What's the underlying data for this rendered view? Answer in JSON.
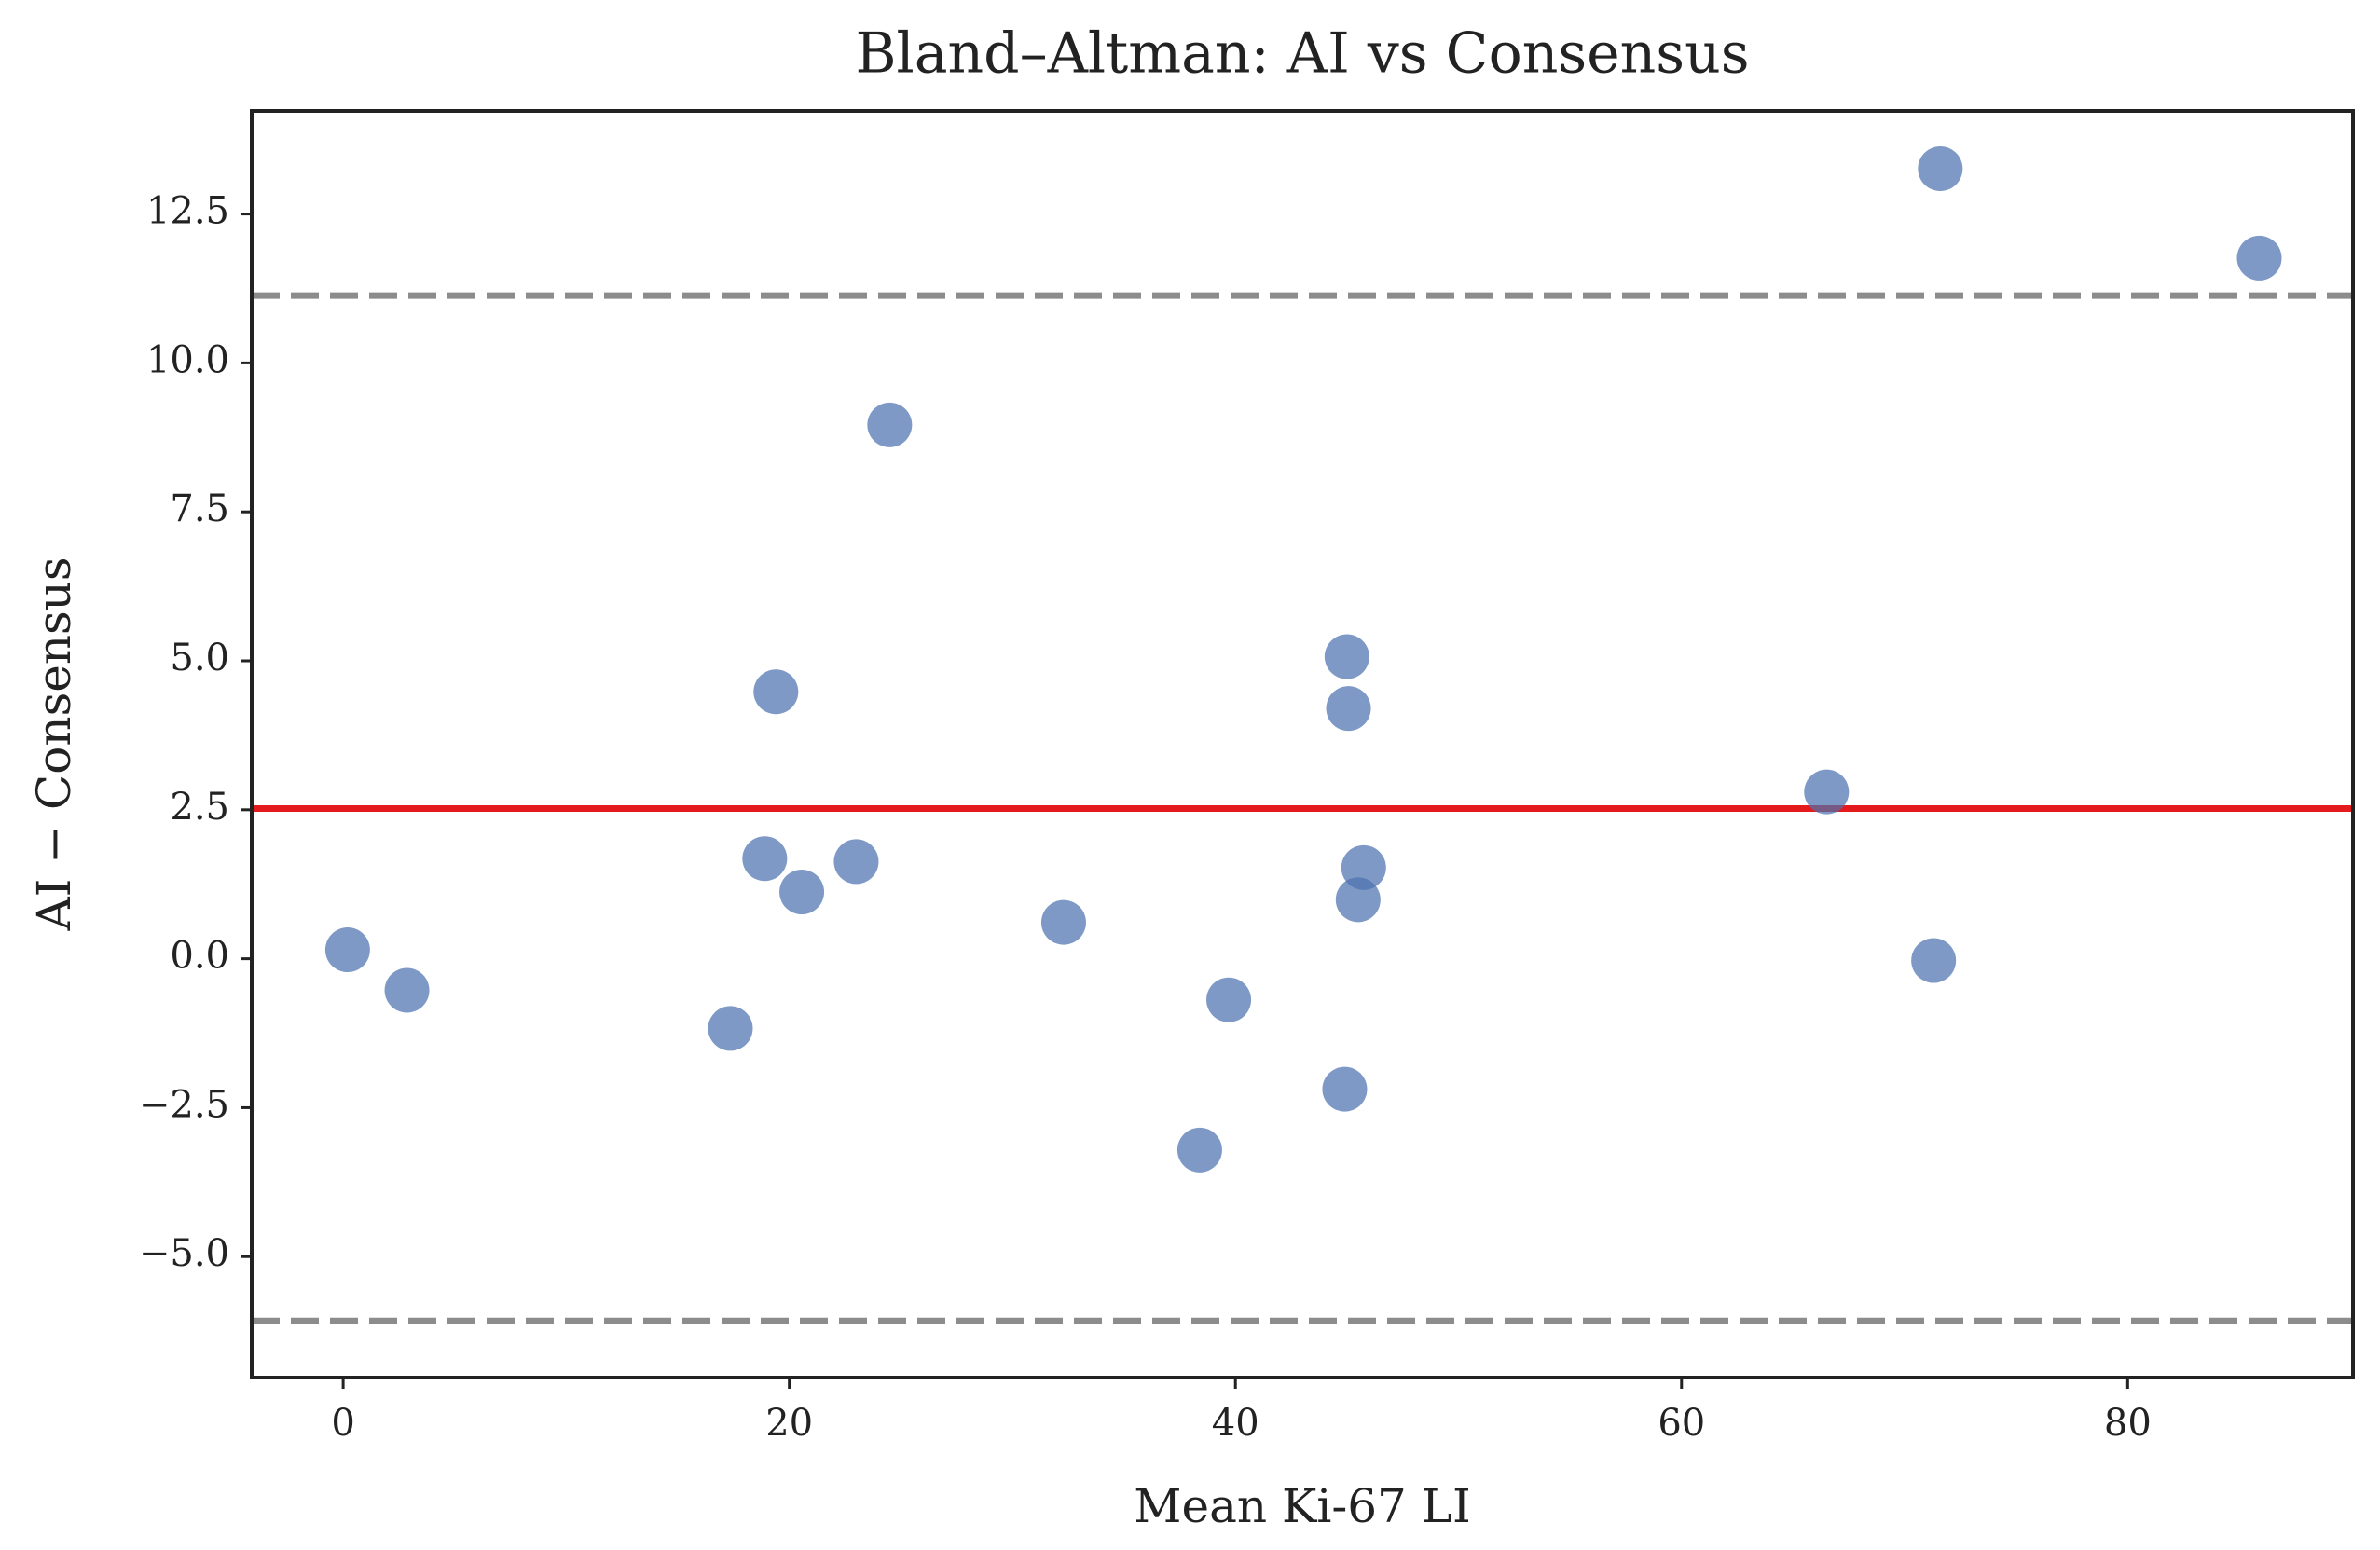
{
  "chart_data": {
    "type": "scatter",
    "title": "Bland–Altman: AI vs Consensus",
    "x_label": "Mean Ki-67 LI",
    "y_label": "AI − Consensus",
    "x": [
      0.2,
      2.86,
      17.36,
      18.9,
      19.4,
      20.56,
      23.0,
      24.5,
      32.3,
      38.4,
      39.7,
      44.9,
      45.0,
      45.07,
      45.5,
      45.75,
      66.5,
      71.3,
      71.6,
      85.9
    ],
    "values": [
      0.15,
      -0.53,
      -1.17,
      1.68,
      4.48,
      1.12,
      1.63,
      8.96,
      0.61,
      -3.21,
      -0.69,
      -2.19,
      5.07,
      4.2,
      0.99,
      1.53,
      2.8,
      -0.03,
      13.26,
      11.76
    ],
    "color": "#4c72b0",
    "reference_lines": [
      {
        "value": 2.52,
        "color": "#e41a1c",
        "style": "solid"
      },
      {
        "value": 11.13,
        "color": "#8c8c8c",
        "style": "dashed"
      },
      {
        "value": -6.08,
        "color": "#8c8c8c",
        "style": "dashed"
      }
    ],
    "xlim": [
      -4.1,
      90.1
    ],
    "ylim": [
      -7.03,
      14.23
    ],
    "xticks": [
      0,
      20,
      40,
      60,
      80
    ],
    "yticks": [
      {
        "value": -5,
        "label": "−5.0"
      },
      {
        "value": -2.5,
        "label": "−2.5"
      },
      {
        "value": 0,
        "label": "0.0"
      },
      2.5,
      {
        "value": 5,
        "label": "5.0"
      },
      7.5,
      {
        "value": 10,
        "label": "10.0"
      },
      12.5
    ]
  }
}
